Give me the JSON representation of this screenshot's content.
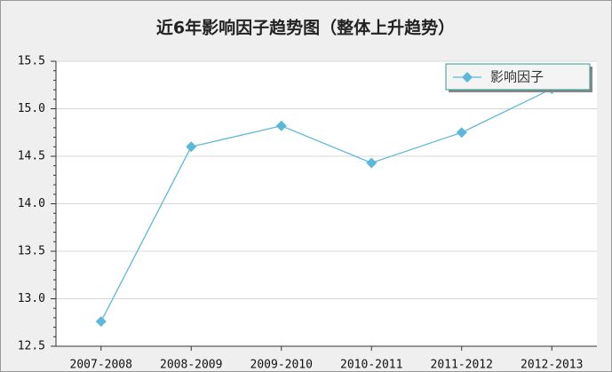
{
  "chart_data": {
    "type": "line",
    "title": "近6年影响因子趋势图（整体上升趋势）",
    "categories": [
      "2007-2008",
      "2008-2009",
      "2009-2010",
      "2010-2011",
      "2011-2012",
      "2012-2013"
    ],
    "series": [
      {
        "name": "影响因子",
        "color": "#5cb8d8",
        "values": [
          12.76,
          14.6,
          14.82,
          14.43,
          14.75,
          15.21
        ]
      }
    ],
    "ylim": [
      12.5,
      15.5
    ],
    "yticks": [
      {
        "value": 12.5,
        "label": "12.5"
      },
      {
        "value": 13.0,
        "label": "13.0"
      },
      {
        "value": 13.5,
        "label": "13.5"
      },
      {
        "value": 14.0,
        "label": "14.0"
      },
      {
        "value": 14.5,
        "label": "14.5"
      },
      {
        "value": 15.0,
        "label": "15.0"
      },
      {
        "value": 15.5,
        "label": "15.5"
      }
    ],
    "grid": true,
    "legend": "top-right"
  }
}
